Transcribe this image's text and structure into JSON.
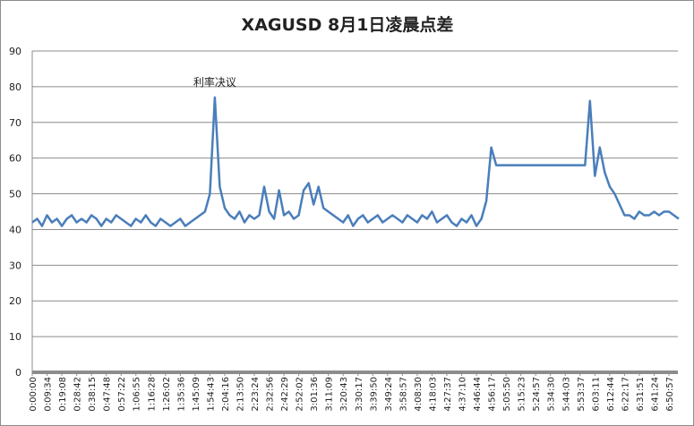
{
  "chart_data": {
    "type": "line",
    "title": "XAGUSD 8月1日凌晨点差",
    "annotation": "利率决议",
    "categories": [
      "0:00:00",
      null,
      null,
      "0:09:34",
      null,
      null,
      "0:19:08",
      null,
      null,
      "0:28:42",
      null,
      null,
      "0:38:15",
      null,
      null,
      "0:47:48",
      null,
      null,
      "0:57:22",
      null,
      null,
      "1:06:55",
      null,
      null,
      "1:16:28",
      null,
      null,
      "1:26:02",
      null,
      null,
      "1:35:36",
      null,
      null,
      "1:45:09",
      null,
      null,
      "1:54:43",
      null,
      null,
      "2:04:16",
      null,
      null,
      "2:13:50",
      null,
      null,
      "2:23:24",
      null,
      null,
      "2:32:56",
      null,
      null,
      "2:42:29",
      null,
      null,
      "2:52:02",
      null,
      null,
      "3:01:36",
      null,
      null,
      "3:11:09",
      null,
      null,
      "3:20:43",
      null,
      null,
      "3:30:17",
      null,
      null,
      "3:39:50",
      null,
      null,
      "3:49:24",
      null,
      null,
      "3:58:57",
      null,
      null,
      "4:08:30",
      null,
      null,
      "4:18:03",
      null,
      null,
      "4:27:37",
      null,
      null,
      "4:37:10",
      null,
      null,
      "4:46:44",
      null,
      null,
      "4:56:17",
      null,
      null,
      "5:05:50",
      null,
      null,
      "5:15:23",
      null,
      null,
      "5:24:57",
      null,
      null,
      "5:34:30",
      null,
      null,
      "5:44:03",
      null,
      null,
      "5:53:37",
      null,
      null,
      "6:03:11",
      null,
      null,
      "6:12:44",
      null,
      null,
      "6:22:17",
      null,
      null,
      "6:31:51",
      null,
      null,
      "6:41:24",
      null,
      null,
      "6:50:57",
      null,
      null
    ],
    "values": [
      42,
      43,
      41,
      44,
      42,
      43,
      41,
      43,
      44,
      42,
      43,
      42,
      44,
      43,
      41,
      43,
      42,
      44,
      43,
      42,
      41,
      43,
      42,
      44,
      42,
      41,
      43,
      42,
      41,
      42,
      43,
      41,
      42,
      43,
      44,
      45,
      50,
      77,
      52,
      46,
      44,
      43,
      45,
      42,
      44,
      43,
      44,
      52,
      45,
      43,
      51,
      44,
      45,
      43,
      44,
      51,
      53,
      47,
      52,
      46,
      45,
      44,
      43,
      42,
      44,
      41,
      43,
      44,
      42,
      43,
      44,
      42,
      43,
      44,
      43,
      42,
      44,
      43,
      42,
      44,
      43,
      45,
      42,
      43,
      44,
      42,
      41,
      43,
      42,
      44,
      41,
      43,
      48,
      63,
      58,
      58,
      58,
      58,
      58,
      58,
      58,
      58,
      58,
      58,
      58,
      58,
      58,
      58,
      58,
      58,
      58,
      58,
      58,
      76,
      55,
      63,
      56,
      52,
      50,
      47,
      44,
      44,
      43,
      45,
      44,
      44,
      45,
      44,
      45,
      45,
      44,
      43
    ],
    "color": "#4a7ebb",
    "ylim": [
      0,
      90
    ],
    "yticks": [
      0,
      10,
      20,
      30,
      40,
      50,
      60,
      70,
      80,
      90
    ],
    "grid": true
  }
}
